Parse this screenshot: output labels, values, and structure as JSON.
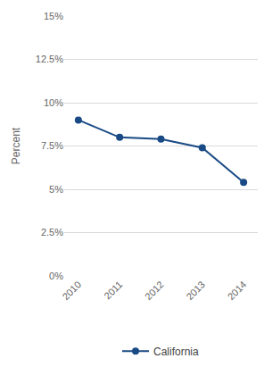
{
  "chart_data": {
    "type": "line",
    "categories": [
      "2010",
      "2011",
      "2012",
      "2013",
      "2014"
    ],
    "series": [
      {
        "name": "California",
        "color": "#1a4a85",
        "values": [
          9.0,
          8.0,
          7.9,
          7.4,
          5.4
        ]
      }
    ],
    "y_label": "Percent",
    "ylim": [
      0,
      15
    ],
    "yticks": [
      {
        "value": 0,
        "label": "0%"
      },
      {
        "value": 2.5,
        "label": "2.5%"
      },
      {
        "value": 5,
        "label": "5%"
      },
      {
        "value": 7.5,
        "label": "7.5%"
      },
      {
        "value": 10,
        "label": "10%"
      },
      {
        "value": 12.5,
        "label": "12.5%"
      },
      {
        "value": 15,
        "label": "15%"
      }
    ],
    "grid": true,
    "legend": "bottom",
    "marker": "circle"
  }
}
